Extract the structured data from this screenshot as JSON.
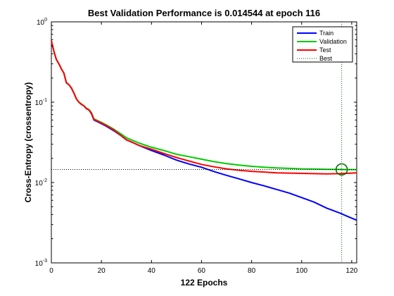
{
  "chart_data": {
    "type": "line",
    "title": "Best Validation Performance is 0.014544 at epoch 116",
    "xlabel": "122 Epochs",
    "ylabel": "Cross-Entropy  (crossentropy)",
    "xlim": [
      0,
      122
    ],
    "ylim": [
      0.001,
      1
    ],
    "yscale": "log",
    "grid": false,
    "legend_position": "top-right",
    "x_ticks": [
      0,
      20,
      40,
      60,
      80,
      100,
      120
    ],
    "y_ticks": [
      {
        "value": 0.001,
        "base": "10",
        "exp": "-3"
      },
      {
        "value": 0.01,
        "base": "10",
        "exp": "-2"
      },
      {
        "value": 0.1,
        "base": "10",
        "exp": "-1"
      },
      {
        "value": 1,
        "base": "10",
        "exp": "0"
      }
    ],
    "series": [
      {
        "name": "Train",
        "color": "#0000ff",
        "x": [
          0,
          1,
          2,
          3,
          4,
          5,
          6,
          7,
          8,
          9,
          10,
          11,
          12,
          13,
          14,
          15,
          16,
          17,
          18,
          20,
          22,
          25,
          28,
          30,
          32,
          35,
          40,
          45,
          50,
          55,
          60,
          65,
          70,
          75,
          80,
          85,
          90,
          95,
          100,
          105,
          110,
          115,
          120,
          122
        ],
        "y": [
          0.58,
          0.43,
          0.34,
          0.3,
          0.26,
          0.23,
          0.175,
          0.165,
          0.15,
          0.13,
          0.11,
          0.1,
          0.094,
          0.09,
          0.083,
          0.08,
          0.072,
          0.06,
          0.058,
          0.054,
          0.05,
          0.044,
          0.038,
          0.034,
          0.032,
          0.029,
          0.025,
          0.022,
          0.019,
          0.017,
          0.0155,
          0.0137,
          0.0123,
          0.0111,
          0.01,
          0.0091,
          0.0082,
          0.0074,
          0.0065,
          0.0057,
          0.0048,
          0.0042,
          0.0036,
          0.0034
        ]
      },
      {
        "name": "Validation",
        "color": "#00cc00",
        "x": [
          0,
          1,
          2,
          3,
          4,
          5,
          6,
          7,
          8,
          9,
          10,
          11,
          12,
          13,
          14,
          15,
          16,
          17,
          18,
          20,
          22,
          25,
          28,
          30,
          32,
          35,
          40,
          45,
          50,
          55,
          60,
          65,
          70,
          75,
          80,
          85,
          90,
          95,
          100,
          105,
          110,
          115,
          116,
          120,
          122
        ],
        "y": [
          0.58,
          0.43,
          0.34,
          0.3,
          0.26,
          0.23,
          0.175,
          0.165,
          0.15,
          0.13,
          0.11,
          0.1,
          0.095,
          0.09,
          0.084,
          0.081,
          0.074,
          0.062,
          0.06,
          0.056,
          0.052,
          0.046,
          0.04,
          0.036,
          0.034,
          0.031,
          0.0275,
          0.025,
          0.0225,
          0.021,
          0.0195,
          0.0182,
          0.0172,
          0.0165,
          0.0159,
          0.0155,
          0.0152,
          0.015,
          0.0148,
          0.0147,
          0.0146,
          0.01455,
          0.014544,
          0.0145,
          0.0145
        ]
      },
      {
        "name": "Test",
        "color": "#ff0000",
        "x": [
          0,
          1,
          2,
          3,
          4,
          5,
          6,
          7,
          8,
          9,
          10,
          11,
          12,
          13,
          14,
          15,
          16,
          17,
          18,
          20,
          22,
          25,
          28,
          30,
          32,
          35,
          40,
          45,
          50,
          55,
          60,
          65,
          70,
          75,
          80,
          85,
          90,
          95,
          100,
          105,
          110,
          115,
          120,
          122
        ],
        "y": [
          0.58,
          0.43,
          0.34,
          0.3,
          0.26,
          0.23,
          0.175,
          0.165,
          0.15,
          0.13,
          0.11,
          0.1,
          0.094,
          0.09,
          0.083,
          0.08,
          0.073,
          0.061,
          0.059,
          0.055,
          0.051,
          0.045,
          0.038,
          0.034,
          0.032,
          0.029,
          0.026,
          0.023,
          0.0205,
          0.0185,
          0.0168,
          0.0157,
          0.0148,
          0.0142,
          0.0138,
          0.0135,
          0.0132,
          0.0131,
          0.013,
          0.0129,
          0.0128,
          0.0129,
          0.0131,
          0.0132
        ]
      }
    ],
    "best": {
      "name": "Best",
      "epoch": 116,
      "value": 0.014544,
      "color": "#006600"
    }
  }
}
